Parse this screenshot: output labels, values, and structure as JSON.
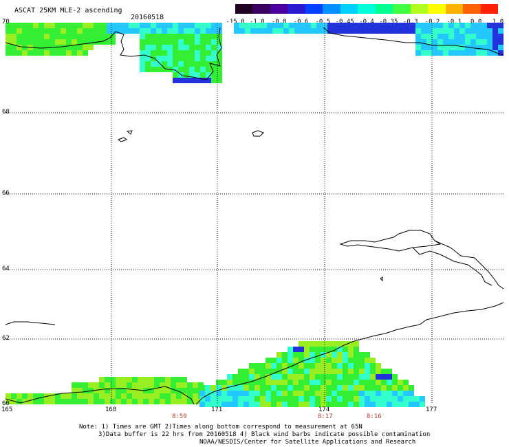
{
  "header": {
    "title": "ASCAT 25KM MLE-2 ascending",
    "date": "20160518"
  },
  "colorbar": {
    "ticks": [
      "-15.0",
      "-1.0",
      "-0.8",
      "-0.6",
      "-0.5",
      "-0.45",
      "-0.4",
      "-0.35",
      "-0.3",
      "-0.2",
      "-0.1",
      "0.0",
      "1.0"
    ],
    "colors": [
      "#200020",
      "#3b0060",
      "#4c00a0",
      "#2a1ad0",
      "#0040ff",
      "#0090ff",
      "#00d0ff",
      "#00ffd8",
      "#00ff90",
      "#40ff40",
      "#b0ff20",
      "#ffff00",
      "#ffb000",
      "#ff6000",
      "#ff2000"
    ]
  },
  "axes": {
    "lat_labels": [
      "70",
      "68",
      "66",
      "64",
      "62",
      "60"
    ],
    "lon_labels": [
      "165",
      "168",
      "171",
      "174",
      "177"
    ]
  },
  "times": [
    "8:59",
    "8:17",
    "8:16"
  ],
  "notes": [
    "Note: 1) Times are GMT 2)Times along bottom correspond to measurement at 65N",
    "3)Data buffer is 22 hrs from 20160518 4) Black wind barbs indicate possible contamination",
    "NOAA/NESDIS/Center for Satellite Applications and Research"
  ],
  "palette": {
    "green": "#33ee33",
    "lime": "#99ee22",
    "cyan": "#33ffcc",
    "teal": "#00e5a0",
    "blue": "#2233dd",
    "skyblue": "#22c8ff"
  }
}
